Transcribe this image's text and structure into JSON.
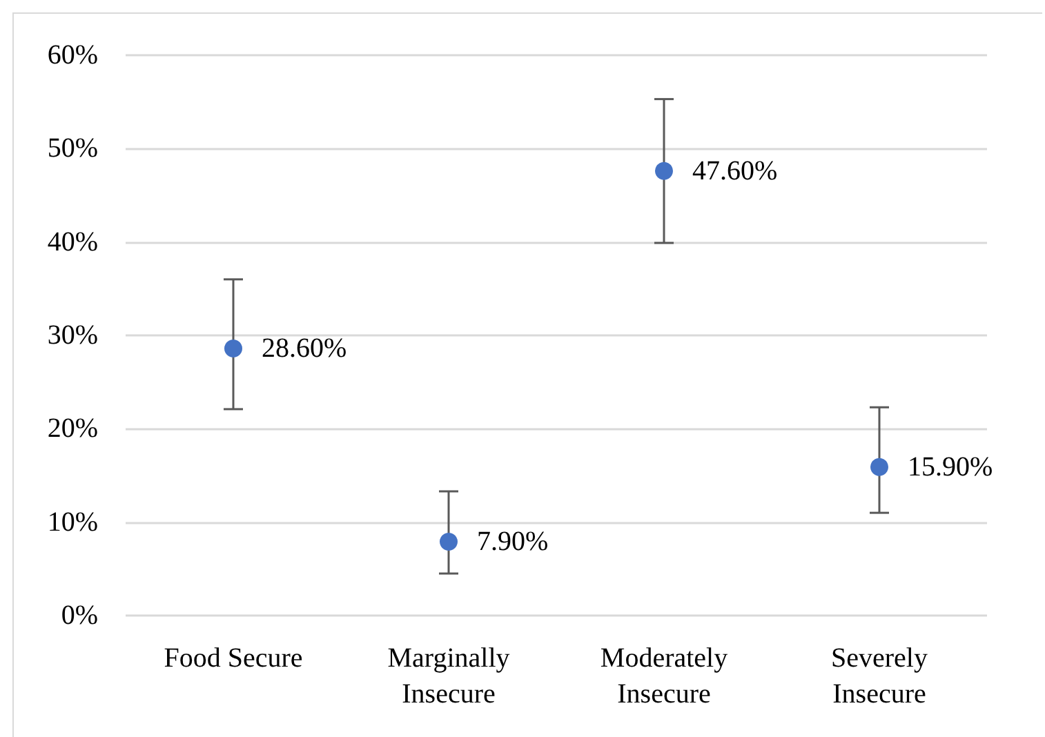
{
  "chart_data": {
    "type": "scatter",
    "categories": [
      "Food Secure",
      "Marginally\nInsecure",
      "Moderately\nInsecure",
      "Severely\nInsecure"
    ],
    "series": [
      {
        "color": "#4472c4",
        "values": [
          28.6,
          7.9,
          47.6,
          15.9
        ],
        "errors": [
          [
            22.1,
            36.0
          ],
          [
            4.5,
            13.3
          ],
          [
            39.9,
            55.3
          ],
          [
            11.0,
            22.3
          ]
        ],
        "value_labels": [
          "28.60%",
          "7.90%",
          "47.60%",
          "15.90%"
        ]
      }
    ],
    "ylim": [
      0,
      60
    ],
    "yticks": [
      {
        "value": 0,
        "label": "0%"
      },
      {
        "value": 10,
        "label": "10%"
      },
      {
        "value": 20,
        "label": "20%"
      },
      {
        "value": 30,
        "label": "30%"
      },
      {
        "value": 40,
        "label": "40%"
      },
      {
        "value": 50,
        "label": "50%"
      },
      {
        "value": 60,
        "label": "60%"
      }
    ],
    "grid": "y",
    "marker": "circle"
  }
}
